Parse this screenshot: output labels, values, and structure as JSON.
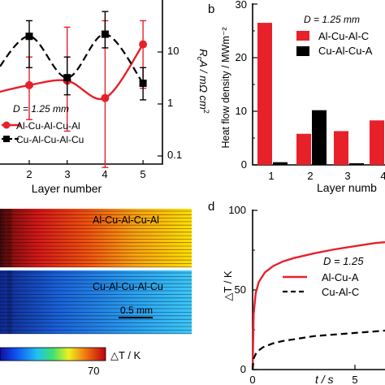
{
  "panel_labels": {
    "b": "b",
    "d": "d"
  },
  "chart_data": [
    {
      "id": "a",
      "type": "line",
      "xlabel": "Layer number",
      "ylabel": "RcA / mΩ·cm²",
      "ylabel_main": "R",
      "ylabel_sub": "c",
      "ylabel_rest": "A / mΩ cm",
      "ylabel_sup": "2",
      "x_ticks": [
        "2",
        "3",
        "4",
        "5"
      ],
      "y_scale": "log",
      "y_ticks": [
        "10",
        "1",
        "0.1"
      ],
      "annotation": "D = 1.25 mm",
      "series": [
        {
          "name": "Al-Cu-Al-Cu-Al",
          "color": "#e8202a",
          "style": "solid",
          "marker": "circle",
          "x": [
            2,
            3,
            4,
            5
          ],
          "y": [
            2.3,
            2.8,
            1.3,
            14
          ],
          "err_low": [
            0.5,
            0.3,
            0.06,
            2
          ],
          "err_high": [
            8,
            30,
            40,
            40
          ]
        },
        {
          "name": "Cu-Al-Cu-Al-Cu",
          "color": "#000000",
          "style": "dashed",
          "marker": "square",
          "x": [
            2,
            3,
            4,
            5
          ],
          "y": [
            20,
            3.2,
            22,
            2.5
          ],
          "err_low": [
            5,
            1.5,
            12,
            1.2
          ],
          "err_high": [
            40,
            8,
            60,
            5
          ]
        }
      ]
    },
    {
      "id": "b",
      "type": "bar",
      "ylabel": "Heat flow density / MWm⁻²",
      "xlabel": "Layer numb",
      "categories": [
        "1",
        "2",
        "3",
        "4"
      ],
      "ylim": [
        0,
        30
      ],
      "y_ticks": [
        "0",
        "10",
        "20",
        "30"
      ],
      "annotation": "D = 1.25 mm",
      "series": [
        {
          "name": "Al-Cu-Al-C",
          "color": "#e8202a",
          "values": [
            26.5,
            5.8,
            6.3,
            8.3
          ]
        },
        {
          "name": "Cu-Al-Cu-A",
          "color": "#000000",
          "values": [
            0.5,
            10.2,
            0.3,
            0
          ]
        }
      ]
    },
    {
      "id": "c",
      "type": "heatmap",
      "strip_labels": [
        "Al-Cu-Al-Cu-Al",
        "Cu-Al-Cu-Al-Cu"
      ],
      "scale_bar": "0.5 mm",
      "colorbar_label": "△T / K",
      "colorbar_max": "70"
    },
    {
      "id": "d",
      "type": "line",
      "ylabel": "△T / K",
      "xlabel": "t / s",
      "y_ticks": [
        "0",
        "50",
        "100"
      ],
      "ylim": [
        0,
        100
      ],
      "x_ticks": [
        "0",
        "5"
      ],
      "xlim": [
        0,
        6.5
      ],
      "annotation": "D = 1.25",
      "series": [
        {
          "name": "Al-Cu-A",
          "color": "#e8202a",
          "style": "solid",
          "x": [
            0,
            0.05,
            0.15,
            0.3,
            0.6,
            1,
            1.5,
            2,
            3,
            4,
            5,
            6,
            6.5
          ],
          "y": [
            0,
            35,
            48,
            55,
            61,
            65,
            68,
            70,
            73,
            75.5,
            77.5,
            79.5,
            80
          ]
        },
        {
          "name": "Cu-Al-C",
          "color": "#000000",
          "style": "dashed",
          "x": [
            0,
            0.05,
            0.2,
            0.5,
            1,
            1.5,
            2,
            3,
            4,
            5,
            6,
            6.5
          ],
          "y": [
            0,
            7,
            11,
            14,
            16.5,
            18,
            19,
            21,
            22,
            23,
            24,
            24.5
          ]
        }
      ]
    }
  ]
}
